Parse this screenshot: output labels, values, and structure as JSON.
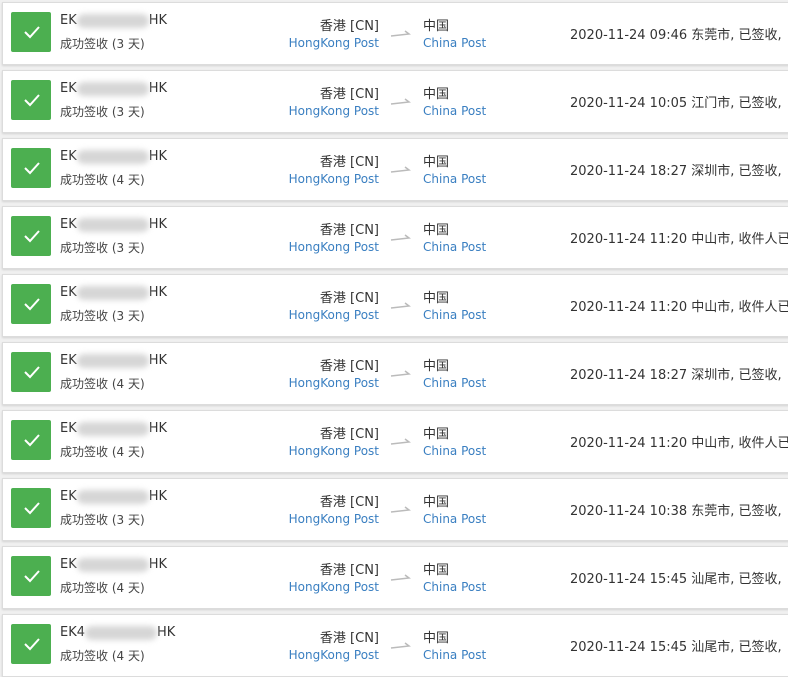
{
  "rows": [
    {
      "id_prefix": "EK",
      "id_suffix": "HK",
      "status": "成功签收 (3 天)",
      "origin": "香港 [CN]",
      "origin_carrier": "HongKong Post",
      "destination": "中国",
      "destination_carrier": "China Post",
      "time": "2020-11-24 09:46",
      "event": "东莞市, 已签收,"
    },
    {
      "id_prefix": "EK",
      "id_suffix": "HK",
      "status": "成功签收 (3 天)",
      "origin": "香港 [CN]",
      "origin_carrier": "HongKong Post",
      "destination": "中国",
      "destination_carrier": "China Post",
      "time": "2020-11-24 10:05",
      "event": "江门市, 已签收,"
    },
    {
      "id_prefix": "EK",
      "id_suffix": "HK",
      "status": "成功签收 (4 天)",
      "origin": "香港 [CN]",
      "origin_carrier": "HongKong Post",
      "destination": "中国",
      "destination_carrier": "China Post",
      "time": "2020-11-24 18:27",
      "event": "深圳市, 已签收,"
    },
    {
      "id_prefix": "EK",
      "id_suffix": "HK",
      "status": "成功签收 (3 天)",
      "origin": "香港 [CN]",
      "origin_carrier": "HongKong Post",
      "destination": "中国",
      "destination_carrier": "China Post",
      "time": "2020-11-24 11:20",
      "event": "中山市, 收件人已"
    },
    {
      "id_prefix": "EK",
      "id_suffix": "HK",
      "status": "成功签收 (3 天)",
      "origin": "香港 [CN]",
      "origin_carrier": "HongKong Post",
      "destination": "中国",
      "destination_carrier": "China Post",
      "time": "2020-11-24 11:20",
      "event": "中山市, 收件人已"
    },
    {
      "id_prefix": "EK",
      "id_suffix": "HK",
      "status": "成功签收 (4 天)",
      "origin": "香港 [CN]",
      "origin_carrier": "HongKong Post",
      "destination": "中国",
      "destination_carrier": "China Post",
      "time": "2020-11-24 18:27",
      "event": "深圳市, 已签收,"
    },
    {
      "id_prefix": "EK",
      "id_suffix": "HK",
      "status": "成功签收 (4 天)",
      "origin": "香港 [CN]",
      "origin_carrier": "HongKong Post",
      "destination": "中国",
      "destination_carrier": "China Post",
      "time": "2020-11-24 11:20",
      "event": "中山市, 收件人已"
    },
    {
      "id_prefix": "EK",
      "id_suffix": "HK",
      "status": "成功签收 (3 天)",
      "origin": "香港 [CN]",
      "origin_carrier": "HongKong Post",
      "destination": "中国",
      "destination_carrier": "China Post",
      "time": "2020-11-24 10:38",
      "event": "东莞市, 已签收,"
    },
    {
      "id_prefix": "EK",
      "id_suffix": "HK",
      "status": "成功签收 (4 天)",
      "origin": "香港 [CN]",
      "origin_carrier": "HongKong Post",
      "destination": "中国",
      "destination_carrier": "China Post",
      "time": "2020-11-24 15:45",
      "event": "汕尾市, 已签收,"
    },
    {
      "id_prefix": "EK4",
      "id_suffix": "HK",
      "status": "成功签收 (4 天)",
      "origin": "香港 [CN]",
      "origin_carrier": "HongKong Post",
      "destination": "中国",
      "destination_carrier": "China Post",
      "time": "2020-11-24 15:45",
      "event": "汕尾市, 已签收,"
    }
  ]
}
